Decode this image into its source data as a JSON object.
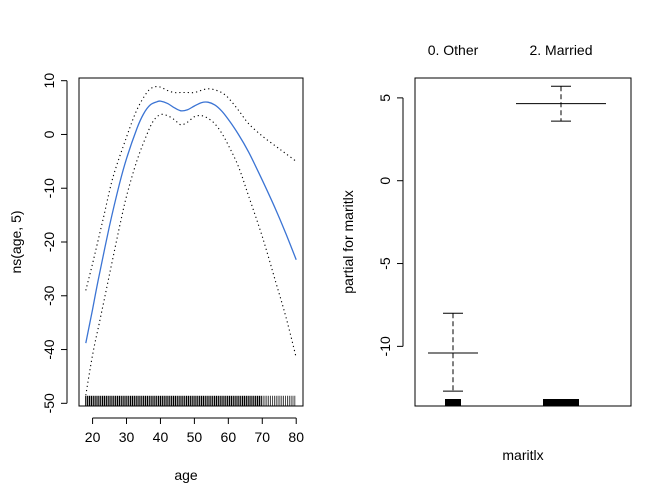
{
  "chart_data": [
    {
      "type": "line",
      "xlabel": "age",
      "ylabel": "ns(age, 5)",
      "xlim": [
        16,
        82
      ],
      "ylim": [
        -50.5,
        10.5
      ],
      "x_ticks": [
        "20",
        "30",
        "40",
        "50",
        "60",
        "70",
        "80"
      ],
      "y_ticks": [
        "-50",
        "-40",
        "-30",
        "-20",
        "-10",
        "0",
        "10"
      ],
      "rug": true,
      "series": [
        {
          "role": "fit",
          "color": "#3b74d4",
          "style": "solid",
          "x": [
            18,
            20,
            22,
            25,
            28,
            30,
            33,
            35,
            37,
            39,
            40,
            42,
            44,
            46,
            48,
            50,
            52,
            54,
            56,
            58,
            60,
            63,
            66,
            70,
            74,
            77,
            80
          ],
          "y": [
            -38.8,
            -32.5,
            -26,
            -17,
            -9,
            -4.5,
            1,
            3.8,
            5.5,
            6.1,
            6.2,
            5.8,
            5,
            4.4,
            4.6,
            5.3,
            5.9,
            6,
            5.5,
            4.4,
            2.8,
            0,
            -3.3,
            -8.5,
            -14,
            -18.5,
            -23.3
          ]
        },
        {
          "role": "upper",
          "color": "#000000",
          "style": "dotted",
          "x": [
            18,
            20,
            23,
            26,
            30,
            33,
            36,
            38,
            40,
            42,
            44,
            46,
            48,
            50,
            52,
            54,
            56,
            58,
            60,
            63,
            66,
            70,
            74,
            77,
            80
          ],
          "y": [
            -29,
            -24,
            -16,
            -8,
            -0.5,
            4.5,
            7.8,
            8.8,
            8.8,
            8.2,
            7.8,
            7.8,
            7.8,
            7.8,
            8.2,
            8.5,
            8.3,
            7.8,
            6.8,
            4.5,
            2,
            -0.3,
            -2.2,
            -3.6,
            -5
          ]
        },
        {
          "role": "lower",
          "color": "#000000",
          "style": "dotted",
          "x": [
            18,
            20,
            22,
            25,
            28,
            30,
            33,
            36,
            38,
            40,
            42,
            44,
            46,
            48,
            50,
            52,
            54,
            56,
            58,
            60,
            63,
            66,
            70,
            74,
            77,
            80
          ],
          "y": [
            -48.5,
            -41,
            -35,
            -26,
            -17,
            -11.5,
            -5,
            0,
            2.6,
            3.7,
            3.5,
            2.8,
            1.8,
            2.3,
            3.3,
            3.5,
            3,
            2,
            0.3,
            -2,
            -6,
            -11.5,
            -19,
            -27.5,
            -34,
            -41.5
          ]
        }
      ]
    },
    {
      "type": "bar",
      "xlabel": "maritlx",
      "ylabel": "partial for maritlx",
      "categories": [
        "0. Other",
        "2. Married"
      ],
      "values": [
        -10.4,
        4.65
      ],
      "upper": [
        -8.0,
        5.7
      ],
      "lower": [
        -12.7,
        3.6
      ],
      "ylim": [
        -13.6,
        6.2
      ],
      "y_ticks": [
        "-10",
        "-5",
        "0",
        "5"
      ],
      "rug": true
    }
  ]
}
